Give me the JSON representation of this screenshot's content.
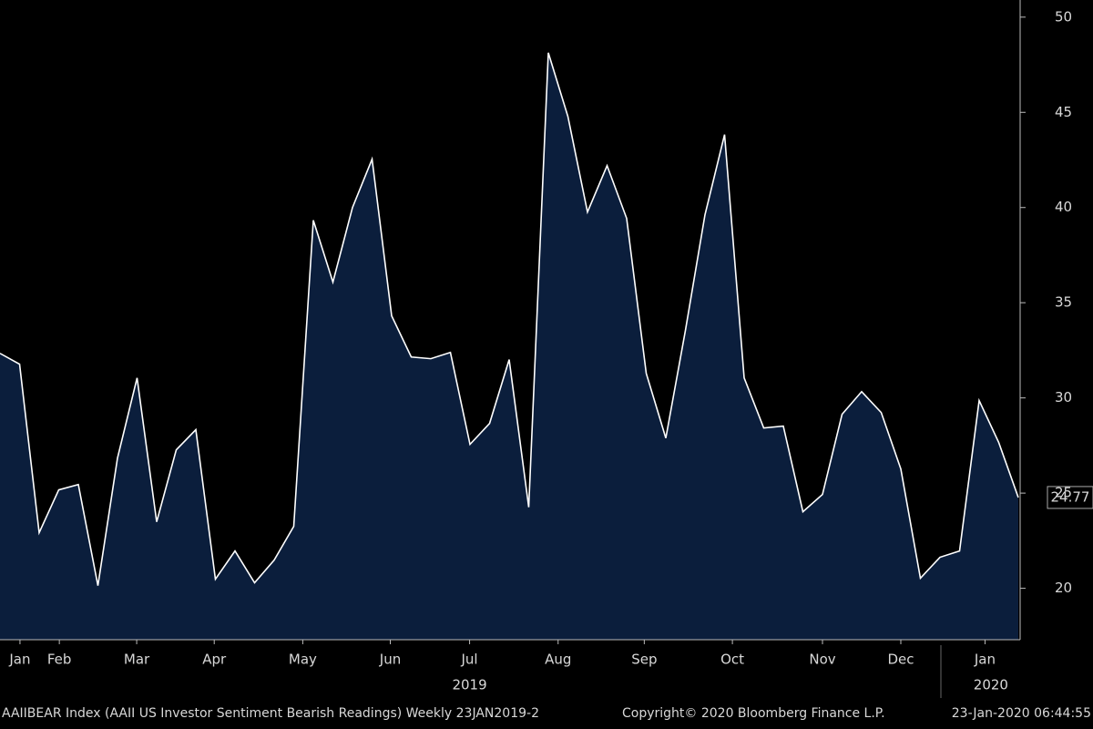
{
  "chart_data": {
    "type": "area",
    "footer": [
      "AAIIBEAR Index (AAII US Investor Sentiment Bearish Readings)  Weekly 23JAN2019-2",
      "Copyright© 2020 Bloomberg Finance L.P.",
      "23-Jan-2020 06:44:55"
    ],
    "categories": [
      null,
      null,
      null,
      null,
      null,
      null,
      null,
      null,
      null,
      null,
      null,
      null,
      null,
      null,
      null,
      null,
      null,
      null,
      null,
      null,
      null,
      null,
      null,
      null,
      null,
      null,
      null,
      null,
      null,
      null,
      null,
      null,
      null,
      null,
      null,
      null,
      null,
      null,
      null,
      null,
      null,
      null,
      null,
      null,
      null,
      null,
      null,
      null,
      null,
      null,
      null,
      null,
      null
    ],
    "series": [
      {
        "name": "AAIIBEAR Index",
        "color": "#ffffff",
        "fill": "#0b1e3c",
        "values": [
          32.34,
          31.77,
          22.92,
          25.17,
          25.45,
          20.14,
          26.84,
          31.05,
          23.49,
          27.27,
          28.33,
          20.48,
          21.96,
          20.29,
          21.48,
          23.25,
          39.33,
          36.08,
          40.0,
          42.54,
          34.31,
          32.15,
          32.06,
          32.39,
          27.56,
          28.66,
          32.01,
          24.26,
          48.13,
          44.78,
          39.76,
          42.2,
          39.43,
          31.29,
          27.89,
          33.54,
          39.62,
          43.83,
          31.05,
          28.42,
          28.52,
          24.02,
          24.93,
          29.14,
          30.33,
          29.23,
          26.27,
          20.53,
          21.63,
          21.96,
          29.86,
          27.66,
          24.77
        ]
      }
    ],
    "xticks": [
      {
        "value": 1.02,
        "label": "Jan"
      },
      {
        "value": 3.03,
        "label": "Feb"
      },
      {
        "value": 6.98,
        "label": "Mar"
      },
      {
        "value": 10.94,
        "label": "Apr"
      },
      {
        "value": 15.46,
        "label": "May"
      },
      {
        "value": 19.93,
        "label": "Jun"
      },
      {
        "value": 23.98,
        "label": "Jul"
      },
      {
        "value": 28.5,
        "label": "Aug"
      },
      {
        "value": 32.9,
        "label": "Sep"
      },
      {
        "value": 37.4,
        "label": "Oct"
      },
      {
        "value": 42.0,
        "label": "Nov"
      },
      {
        "value": 46.0,
        "label": "Dec"
      },
      {
        "value": 50.3,
        "label": "Jan"
      }
    ],
    "year_labels": [
      {
        "value": 23.98,
        "label": "2019"
      },
      {
        "value": 50.6,
        "label": "2020"
      }
    ],
    "ylim": [
      17.3,
      50.9
    ],
    "yticks": [
      20,
      25,
      30,
      35,
      40,
      45,
      50
    ]
  }
}
